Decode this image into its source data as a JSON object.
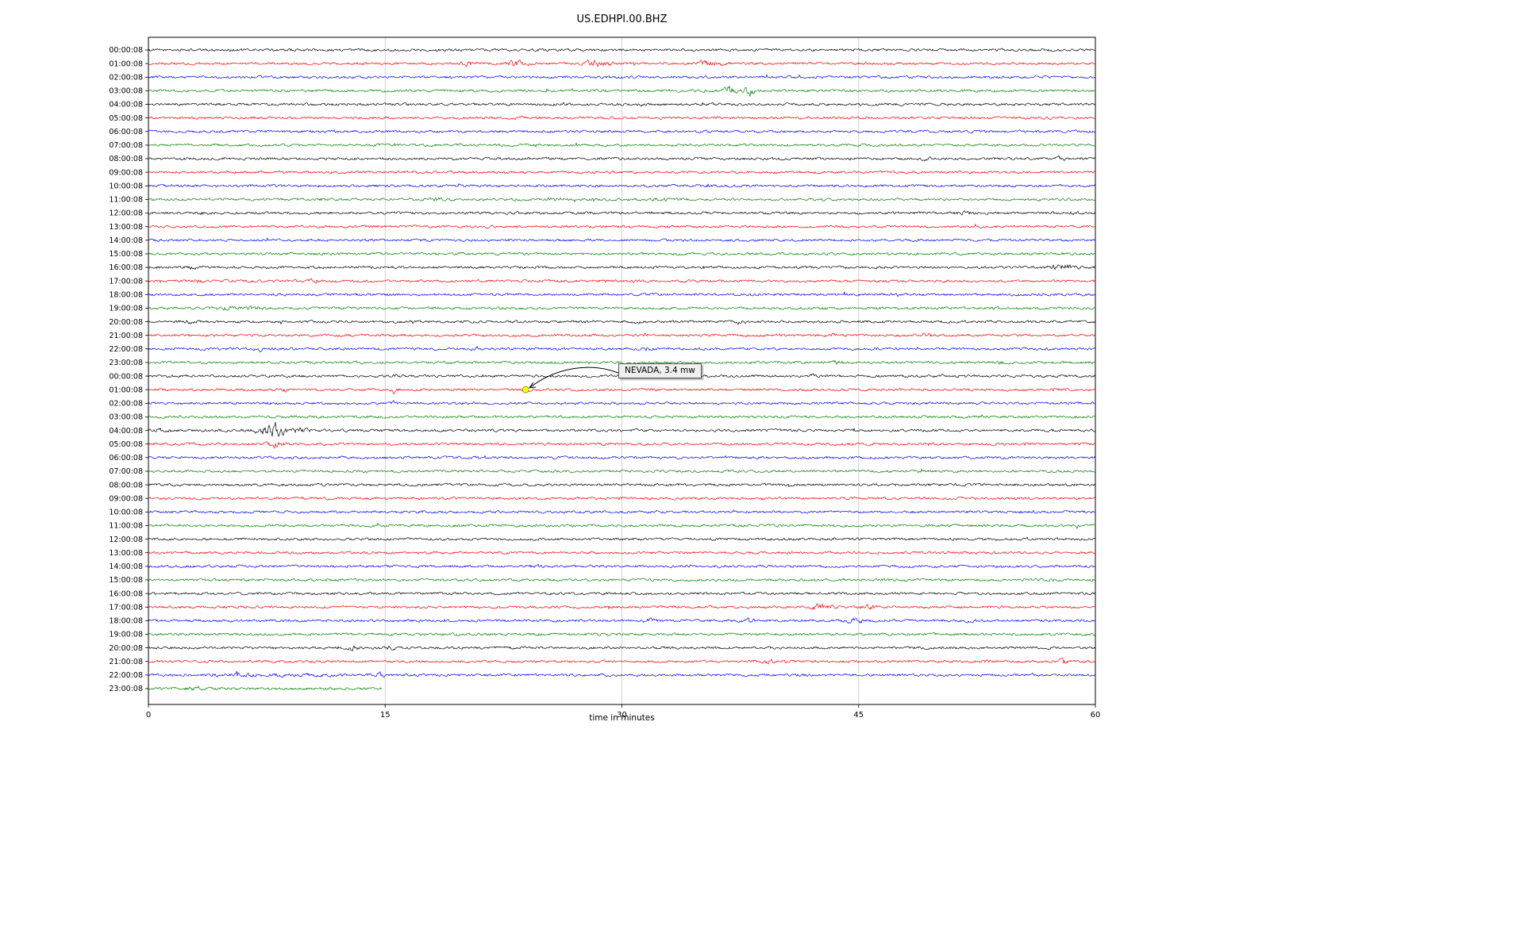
{
  "chart_data": {
    "type": "line",
    "subtype": "helicorder-seismogram",
    "title": "US.EDHPI.00.BHZ",
    "xlabel": "time in minutes",
    "xlim": [
      0,
      60
    ],
    "x_ticks": [
      0,
      15,
      30,
      45,
      60
    ],
    "grid_x": [
      15,
      30,
      45
    ],
    "grid_on": true,
    "row_colors_cycle": [
      "#000000",
      "#ff0000",
      "#0000ff",
      "#008000"
    ],
    "row_labels": [
      "00:00:08",
      "01:00:08",
      "02:00:08",
      "03:00:08",
      "04:00:08",
      "05:00:08",
      "06:00:08",
      "07:00:08",
      "08:00:08",
      "09:00:08",
      "10:00:08",
      "11:00:08",
      "12:00:08",
      "13:00:08",
      "14:00:08",
      "15:00:08",
      "16:00:08",
      "17:00:08",
      "18:00:08",
      "19:00:08",
      "20:00:08",
      "21:00:08",
      "22:00:08",
      "23:00:08",
      "00:00:08",
      "01:00:08",
      "02:00:08",
      "03:00:08",
      "04:00:08",
      "05:00:08",
      "06:00:08",
      "07:00:08",
      "08:00:08",
      "09:00:08",
      "10:00:08",
      "11:00:08",
      "12:00:08",
      "13:00:08",
      "14:00:08",
      "15:00:08",
      "16:00:08",
      "17:00:08",
      "18:00:08",
      "19:00:08",
      "20:00:08",
      "21:00:08",
      "22:00:08",
      "23:00:08"
    ],
    "minutes_per_row": 60,
    "partial_rows": [
      {
        "row": 47,
        "end_minute": 14.8
      }
    ],
    "annotation": {
      "label": "NEVADA, 3.4 mw",
      "row_index": 25,
      "minute": 23.9,
      "marker_color": "#ffff00"
    },
    "events_format": "[row_index, minute, relative_amplitude_px, width_minutes]",
    "events": [
      [
        1,
        20.2,
        4,
        0.3
      ],
      [
        1,
        23.3,
        5,
        0.4
      ],
      [
        1,
        28.3,
        6,
        0.5
      ],
      [
        1,
        29.2,
        4,
        0.3
      ],
      [
        1,
        35.3,
        7,
        0.3
      ],
      [
        1,
        36.1,
        3,
        0.3
      ],
      [
        3,
        36.8,
        8,
        0.25
      ],
      [
        3,
        38.0,
        9,
        0.3
      ],
      [
        5,
        23.5,
        2.5,
        0.2
      ],
      [
        8,
        49.2,
        1.5,
        0.3
      ],
      [
        8,
        57.8,
        2.5,
        0.2
      ],
      [
        11,
        10.8,
        2,
        0.3
      ],
      [
        11,
        18.3,
        2.5,
        0.3
      ],
      [
        11,
        25.8,
        3,
        0.4
      ],
      [
        11,
        32.5,
        2,
        0.3
      ],
      [
        12,
        3.5,
        2,
        0.3
      ],
      [
        12,
        51.5,
        2.5,
        0.4
      ],
      [
        12,
        58.5,
        2.5,
        0.3
      ],
      [
        16,
        2.8,
        2.5,
        0.3
      ],
      [
        16,
        57.9,
        5,
        0.6
      ],
      [
        17,
        3.2,
        2.5,
        0.2
      ],
      [
        17,
        10.4,
        3,
        0.25
      ],
      [
        17,
        30.9,
        4,
        0.15
      ],
      [
        19,
        5.0,
        2.5,
        0.3
      ],
      [
        19,
        6.6,
        3,
        0.4
      ],
      [
        20,
        2.5,
        2,
        0.3
      ],
      [
        20,
        31.0,
        2,
        0.2
      ],
      [
        20,
        37.5,
        2,
        0.3
      ],
      [
        21,
        31.5,
        3,
        0.15
      ],
      [
        21,
        43.5,
        2,
        0.2
      ],
      [
        21,
        49.3,
        3,
        0.2
      ],
      [
        22,
        7.0,
        4,
        0.15
      ],
      [
        22,
        20.8,
        4,
        0.2
      ],
      [
        22,
        31.5,
        2,
        0.2
      ],
      [
        23,
        43.7,
        4,
        0.2
      ],
      [
        23,
        54.0,
        2,
        0.2
      ],
      [
        24,
        15.8,
        2,
        0.2
      ],
      [
        24,
        42.0,
        2,
        0.2
      ],
      [
        25,
        8.7,
        4,
        0.12
      ],
      [
        25,
        15.6,
        6,
        0.12
      ],
      [
        25,
        24.0,
        2.5,
        0.3
      ],
      [
        26,
        15.5,
        5,
        0.12
      ],
      [
        28,
        0.8,
        3,
        0.5
      ],
      [
        28,
        7.5,
        8,
        0.5
      ],
      [
        28,
        8.2,
        10,
        0.4
      ],
      [
        28,
        9.5,
        5,
        0.4
      ],
      [
        29,
        8.0,
        5,
        0.3
      ],
      [
        38,
        24.5,
        2.5,
        0.3
      ],
      [
        38,
        36.0,
        2.5,
        0.3
      ],
      [
        41,
        42.7,
        5,
        0.5
      ],
      [
        41,
        45.6,
        4,
        0.4
      ],
      [
        42,
        31.8,
        3,
        0.3
      ],
      [
        42,
        38.0,
        3,
        0.4
      ],
      [
        42,
        44.8,
        4,
        0.4
      ],
      [
        42,
        52.0,
        2,
        0.3
      ],
      [
        44,
        12.9,
        3,
        0.3
      ],
      [
        44,
        15.2,
        3,
        0.3
      ],
      [
        45,
        39.3,
        3,
        0.3
      ],
      [
        45,
        40.5,
        3,
        0.2
      ],
      [
        45,
        53.0,
        2.5,
        0.2
      ],
      [
        45,
        57.9,
        7,
        0.15
      ],
      [
        46,
        5.6,
        4,
        0.2
      ],
      [
        46,
        8.0,
        1.5,
        4
      ],
      [
        46,
        14.7,
        6,
        0.15
      ],
      [
        47,
        2.9,
        4,
        0.4
      ]
    ]
  }
}
